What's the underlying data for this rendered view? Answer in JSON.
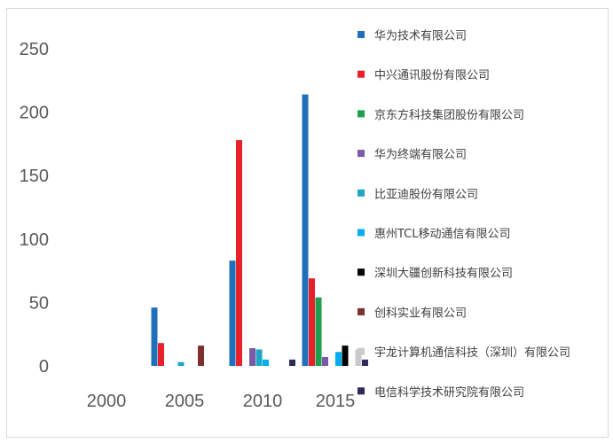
{
  "chart_data": {
    "type": "bar",
    "categories": [
      "2000",
      "2005",
      "2010",
      "2015"
    ],
    "ylim": [
      0,
      250
    ],
    "yticks": [
      0,
      50,
      100,
      150,
      200,
      250
    ],
    "grid": false,
    "legend_position": "right",
    "series": [
      {
        "name": "华为技术有限公司",
        "color": "#1f6fba",
        "values": [
          0,
          46,
          83,
          214
        ]
      },
      {
        "name": "中兴通讯股份有限公司",
        "color": "#e8202a",
        "values": [
          0,
          18,
          178,
          69
        ]
      },
      {
        "name": "京东方科技集团股份有限公司",
        "color": "#1f9e4d",
        "values": [
          0,
          0,
          0,
          54
        ]
      },
      {
        "name": "华为终端有限公司",
        "color": "#7a5aa6",
        "values": [
          0,
          0,
          14,
          7
        ]
      },
      {
        "name": "比亚迪股份有限公司",
        "color": "#1ea6c4",
        "values": [
          0,
          3,
          13,
          0
        ]
      },
      {
        "name": "惠州TCL移动通信有限公司",
        "color": "#00aeef",
        "values": [
          0,
          0,
          5,
          11
        ]
      },
      {
        "name": "深圳大疆创新科技有限公司",
        "color": "#000000",
        "values": [
          0,
          0,
          0,
          16
        ]
      },
      {
        "name": "创科实业有限公司",
        "color": "#7f2f30",
        "values": [
          0,
          16,
          0,
          0
        ]
      },
      {
        "name": "宇龙计算机通信科技（深圳）有限公司",
        "color": "#c9c9c9",
        "values": [
          0,
          0,
          0,
          13
        ]
      },
      {
        "name": "电信科学技术研究院有限公司",
        "color": "#2e2a5c",
        "values": [
          0,
          0,
          5,
          5
        ]
      }
    ]
  }
}
